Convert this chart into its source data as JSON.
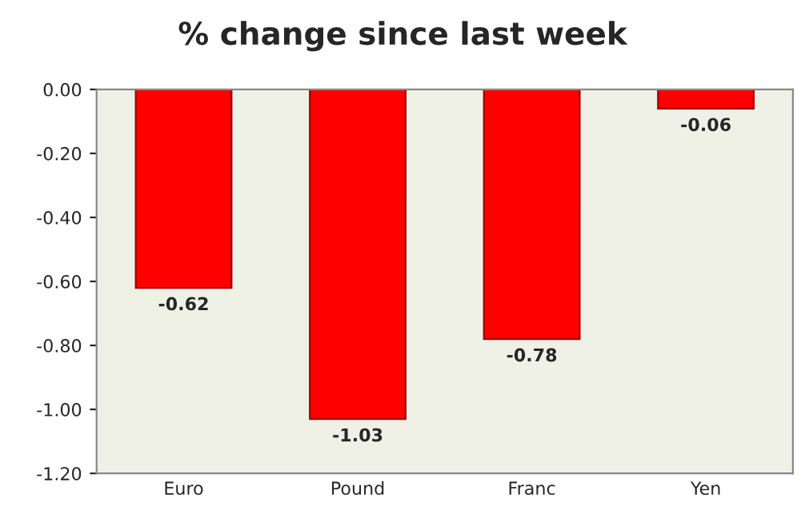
{
  "chart_data": {
    "type": "bar",
    "title": "% change since last week",
    "categories": [
      "Euro",
      "Pound",
      "Franc",
      "Yen"
    ],
    "values": [
      -0.62,
      -1.03,
      -0.78,
      -0.06
    ],
    "color": "#ff0000",
    "ylim": [
      -1.2,
      0
    ],
    "yticks": [
      {
        "value": 0,
        "label": "0.00"
      },
      {
        "value": -0.2,
        "label": "-0.20"
      },
      {
        "value": -0.4,
        "label": "-0.40"
      },
      {
        "value": -0.6,
        "label": "-0.60"
      },
      {
        "value": -0.8,
        "label": "-0.80"
      },
      {
        "value": -1.0,
        "label": "-1.00"
      },
      {
        "value": -1.2,
        "label": "-1.20"
      }
    ],
    "grid": false,
    "data_labels": true,
    "legend": false
  }
}
